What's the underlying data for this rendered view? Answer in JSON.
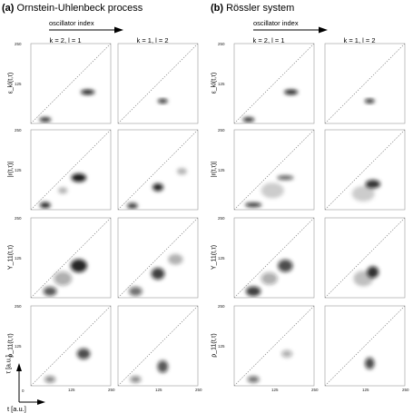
{
  "panels": [
    {
      "letter": "(a)",
      "title": "Ornstein-Uhlenbeck process",
      "arrow_label": "oscillator index",
      "columns": [
        "k = 2, l = 1",
        "k = 1, l = 2"
      ]
    },
    {
      "letter": "(b)",
      "title": "Rössler system",
      "arrow_label": "oscillator index",
      "columns": [
        "k = 2, l = 1",
        "k = 1, l = 2"
      ]
    }
  ],
  "row_labels": [
    "ε_kl(t,τ)",
    "|r(t,τ)|",
    "Y_11(t,τ)",
    "ρ_11(t,τ)"
  ],
  "ticks": {
    "y": [
      "250",
      "125",
      "0"
    ],
    "x": [
      "0",
      "125",
      "250"
    ]
  },
  "axis_labels": {
    "tau": "τ [a.u.]",
    "t": "t [a.u.]"
  },
  "chart_data": {
    "type": "heatmap",
    "description_none": "",
    "xlim": [
      0,
      250
    ],
    "ylim": [
      0,
      250
    ],
    "xticks": [
      0,
      125,
      250
    ],
    "yticks": [
      0,
      125,
      250
    ],
    "colors": {
      "blob": "#111111",
      "diagonal": "#777777",
      "frame": "#999999"
    },
    "blobs": {
      "a": [
        [
          [
            {
              "t": 45,
              "tau": 12,
              "w": 25,
              "h": 6,
              "s": 0.9
            },
            {
              "t": 178,
              "tau": 98,
              "w": 32,
              "h": 7,
              "s": 0.95
            }
          ],
          [
            {
              "t": 140,
              "tau": 70,
              "w": 20,
              "h": 5,
              "s": 0.9
            }
          ]
        ],
        [
          [
            {
              "t": 45,
              "tau": 14,
              "w": 22,
              "h": 10,
              "s": 0.9
            },
            {
              "t": 150,
              "tau": 100,
              "w": 35,
              "h": 18,
              "s": 0.95
            },
            {
              "t": 100,
              "tau": 60,
              "w": 18,
              "h": 12,
              "s": 0.3
            }
          ],
          [
            {
              "t": 45,
              "tau": 12,
              "w": 22,
              "h": 10,
              "s": 0.8
            },
            {
              "t": 125,
              "tau": 70,
              "w": 22,
              "h": 16,
              "s": 0.9
            },
            {
              "t": 200,
              "tau": 120,
              "w": 20,
              "h": 12,
              "s": 0.3
            }
          ]
        ],
        [
          [
            {
              "t": 60,
              "tau": 20,
              "w": 30,
              "h": 20,
              "s": 0.7
            },
            {
              "t": 150,
              "tau": 100,
              "w": 40,
              "h": 32,
              "s": 0.9
            },
            {
              "t": 100,
              "tau": 60,
              "w": 45,
              "h": 35,
              "s": 0.35
            }
          ],
          [
            {
              "t": 55,
              "tau": 20,
              "w": 30,
              "h": 20,
              "s": 0.6
            },
            {
              "t": 125,
              "tau": 75,
              "w": 30,
              "h": 28,
              "s": 0.8
            },
            {
              "t": 180,
              "tau": 120,
              "w": 35,
              "h": 25,
              "s": 0.3
            }
          ]
        ],
        [
          [
            {
              "t": 60,
              "tau": 20,
              "w": 22,
              "h": 12,
              "s": 0.5
            },
            {
              "t": 165,
              "tau": 100,
              "w": 30,
              "h": 25,
              "s": 0.75
            }
          ],
          [
            {
              "t": 55,
              "tau": 20,
              "w": 22,
              "h": 12,
              "s": 0.5
            },
            {
              "t": 140,
              "tau": 60,
              "w": 22,
              "h": 30,
              "s": 0.7
            }
          ]
        ]
      ],
      "b": [
        [
          [
            {
              "t": 45,
              "tau": 12,
              "w": 25,
              "h": 6,
              "s": 0.9
            },
            {
              "t": 178,
              "tau": 98,
              "w": 32,
              "h": 7,
              "s": 0.95
            }
          ],
          [
            {
              "t": 140,
              "tau": 70,
              "w": 20,
              "h": 5,
              "s": 0.9
            }
          ]
        ],
        [
          [
            {
              "t": 60,
              "tau": 15,
              "w": 40,
              "h": 5,
              "s": 0.9
            },
            {
              "t": 160,
              "tau": 100,
              "w": 40,
              "h": 5,
              "s": 0.7
            },
            {
              "t": 120,
              "tau": 60,
              "w": 60,
              "h": 40,
              "s": 0.2
            }
          ],
          [
            {
              "t": 150,
              "tau": 80,
              "w": 35,
              "h": 18,
              "s": 0.85
            },
            {
              "t": 120,
              "tau": 50,
              "w": 60,
              "h": 40,
              "s": 0.2
            }
          ]
        ],
        [
          [
            {
              "t": 60,
              "tau": 20,
              "w": 35,
              "h": 22,
              "s": 0.8
            },
            {
              "t": 160,
              "tau": 100,
              "w": 35,
              "h": 30,
              "s": 0.75
            },
            {
              "t": 110,
              "tau": 60,
              "w": 40,
              "h": 30,
              "s": 0.35
            }
          ],
          [
            {
              "t": 150,
              "tau": 80,
              "w": 25,
              "h": 28,
              "s": 0.85
            },
            {
              "t": 120,
              "tau": 60,
              "w": 50,
              "h": 40,
              "s": 0.25
            }
          ]
        ],
        [
          [
            {
              "t": 60,
              "tau": 20,
              "w": 25,
              "h": 12,
              "s": 0.6
            },
            {
              "t": 165,
              "tau": 100,
              "w": 22,
              "h": 14,
              "s": 0.35
            }
          ],
          [
            {
              "t": 140,
              "tau": 70,
              "w": 18,
              "h": 28,
              "s": 0.75
            }
          ]
        ]
      ]
    }
  }
}
